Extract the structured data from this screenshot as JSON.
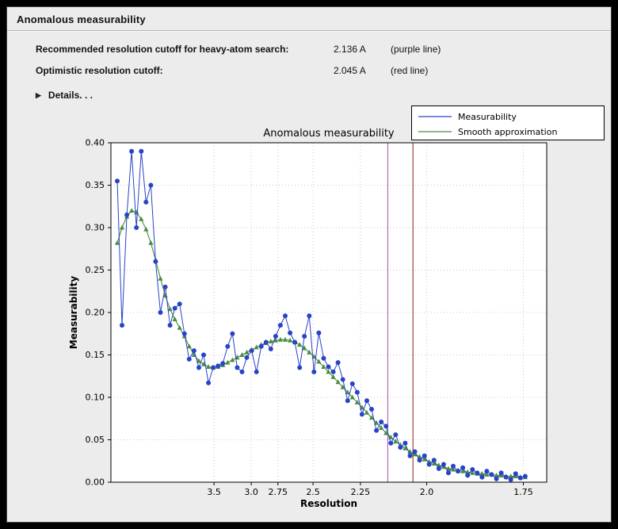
{
  "panel": {
    "title": "Anomalous measurability"
  },
  "info_rows": [
    {
      "label": "Recommended resolution cutoff for heavy-atom search:",
      "value": "2.136 A",
      "note": "(purple line)"
    },
    {
      "label": "Optimistic resolution cutoff:",
      "value": "2.045 A",
      "note": "(red line)"
    }
  ],
  "details": {
    "label": "Details. . .",
    "icon": "disclosure-triangle-right-icon"
  },
  "colors": {
    "panel_bg": "#ececec",
    "measurability": "#2743c7",
    "smooth": "#4a8b3e",
    "purple_line": "#b05fb0",
    "red_line": "#9c3226",
    "grid": "#b8b8b8"
  },
  "chart_data": {
    "type": "line",
    "title": "Anomalous measurability",
    "xlabel": "Resolution",
    "ylabel": "Measurability",
    "x_axis": {
      "scale": "inverse_d_squared",
      "max_inv_d2": 0.345,
      "tick_resolutions": [
        3.5,
        3.0,
        2.75,
        2.5,
        2.25,
        2.0,
        1.75
      ],
      "tick_labels": [
        "3.5",
        "3.0",
        "2.75",
        "2.5",
        "2.25",
        "2.0",
        "1.75"
      ]
    },
    "y_axis": {
      "range": [
        0.0,
        0.4
      ],
      "ticks": [
        0.0,
        0.05,
        0.1,
        0.15,
        0.2,
        0.25,
        0.3,
        0.35,
        0.4
      ]
    },
    "legend": {
      "position": "top-right",
      "entries": [
        {
          "name": "Measurability",
          "color": "#2743c7"
        },
        {
          "name": "Smooth approximation",
          "color": "#4a8b3e"
        }
      ]
    },
    "vlines": [
      {
        "name": "purple-line",
        "resolution": 2.136,
        "color": "#b05fb0"
      },
      {
        "name": "red-line",
        "resolution": 2.045,
        "color": "#9c3226"
      }
    ],
    "x_inv_d2": [
      0.005,
      0.0088,
      0.0126,
      0.0164,
      0.0202,
      0.024,
      0.0278,
      0.0316,
      0.0354,
      0.0392,
      0.043,
      0.0468,
      0.0506,
      0.0544,
      0.0582,
      0.062,
      0.0658,
      0.0696,
      0.0734,
      0.0772,
      0.081,
      0.0848,
      0.0886,
      0.0924,
      0.0962,
      0.1,
      0.1038,
      0.1076,
      0.1114,
      0.1152,
      0.119,
      0.1228,
      0.1266,
      0.1304,
      0.1342,
      0.138,
      0.1418,
      0.1456,
      0.1494,
      0.1532,
      0.157,
      0.1608,
      0.1646,
      0.1684,
      0.1722,
      0.176,
      0.1798,
      0.1836,
      0.1874,
      0.1912,
      0.195,
      0.1988,
      0.2026,
      0.2064,
      0.2102,
      0.214,
      0.2178,
      0.2216,
      0.2254,
      0.2292,
      0.233,
      0.2368,
      0.2406,
      0.2444,
      0.2482,
      0.252,
      0.2558,
      0.2596,
      0.2634,
      0.2672,
      0.271,
      0.2748,
      0.2786,
      0.2824,
      0.2862,
      0.29,
      0.2938,
      0.2976,
      0.3014,
      0.3052,
      0.309,
      0.3128,
      0.3166,
      0.3204,
      0.3242,
      0.328
    ],
    "series": [
      {
        "name": "Measurability",
        "color": "#2743c7",
        "marker": "circle",
        "values": [
          0.355,
          0.185,
          0.315,
          0.39,
          0.3,
          0.39,
          0.33,
          0.35,
          0.26,
          0.2,
          0.23,
          0.185,
          0.205,
          0.21,
          0.175,
          0.145,
          0.155,
          0.135,
          0.15,
          0.117,
          0.135,
          0.137,
          0.14,
          0.16,
          0.175,
          0.135,
          0.13,
          0.147,
          0.155,
          0.13,
          0.16,
          0.165,
          0.157,
          0.172,
          0.185,
          0.196,
          0.176,
          0.165,
          0.135,
          0.172,
          0.196,
          0.13,
          0.176,
          0.146,
          0.136,
          0.13,
          0.141,
          0.121,
          0.096,
          0.116,
          0.106,
          0.08,
          0.096,
          0.086,
          0.061,
          0.071,
          0.066,
          0.046,
          0.056,
          0.041,
          0.046,
          0.031,
          0.036,
          0.026,
          0.031,
          0.021,
          0.026,
          0.016,
          0.021,
          0.011,
          0.019,
          0.013,
          0.017,
          0.008,
          0.015,
          0.011,
          0.006,
          0.013,
          0.009,
          0.004,
          0.011,
          0.006,
          0.003,
          0.01,
          0.005,
          0.007
        ]
      },
      {
        "name": "Smooth approximation",
        "color": "#4a8b3e",
        "marker": "triangle",
        "values": [
          0.282,
          0.3,
          0.313,
          0.32,
          0.318,
          0.31,
          0.298,
          0.282,
          0.262,
          0.24,
          0.22,
          0.204,
          0.192,
          0.182,
          0.172,
          0.16,
          0.15,
          0.143,
          0.139,
          0.136,
          0.135,
          0.136,
          0.138,
          0.141,
          0.144,
          0.147,
          0.15,
          0.153,
          0.156,
          0.159,
          0.162,
          0.164,
          0.166,
          0.167,
          0.168,
          0.168,
          0.167,
          0.165,
          0.162,
          0.158,
          0.153,
          0.148,
          0.142,
          0.136,
          0.13,
          0.124,
          0.118,
          0.112,
          0.106,
          0.1,
          0.094,
          0.088,
          0.082,
          0.076,
          0.07,
          0.064,
          0.058,
          0.053,
          0.048,
          0.044,
          0.04,
          0.036,
          0.033,
          0.03,
          0.027,
          0.024,
          0.022,
          0.02,
          0.018,
          0.016,
          0.015,
          0.014,
          0.013,
          0.012,
          0.011,
          0.01,
          0.01,
          0.009,
          0.009,
          0.008,
          0.008,
          0.007,
          0.007,
          0.007,
          0.006,
          0.006
        ]
      }
    ]
  }
}
